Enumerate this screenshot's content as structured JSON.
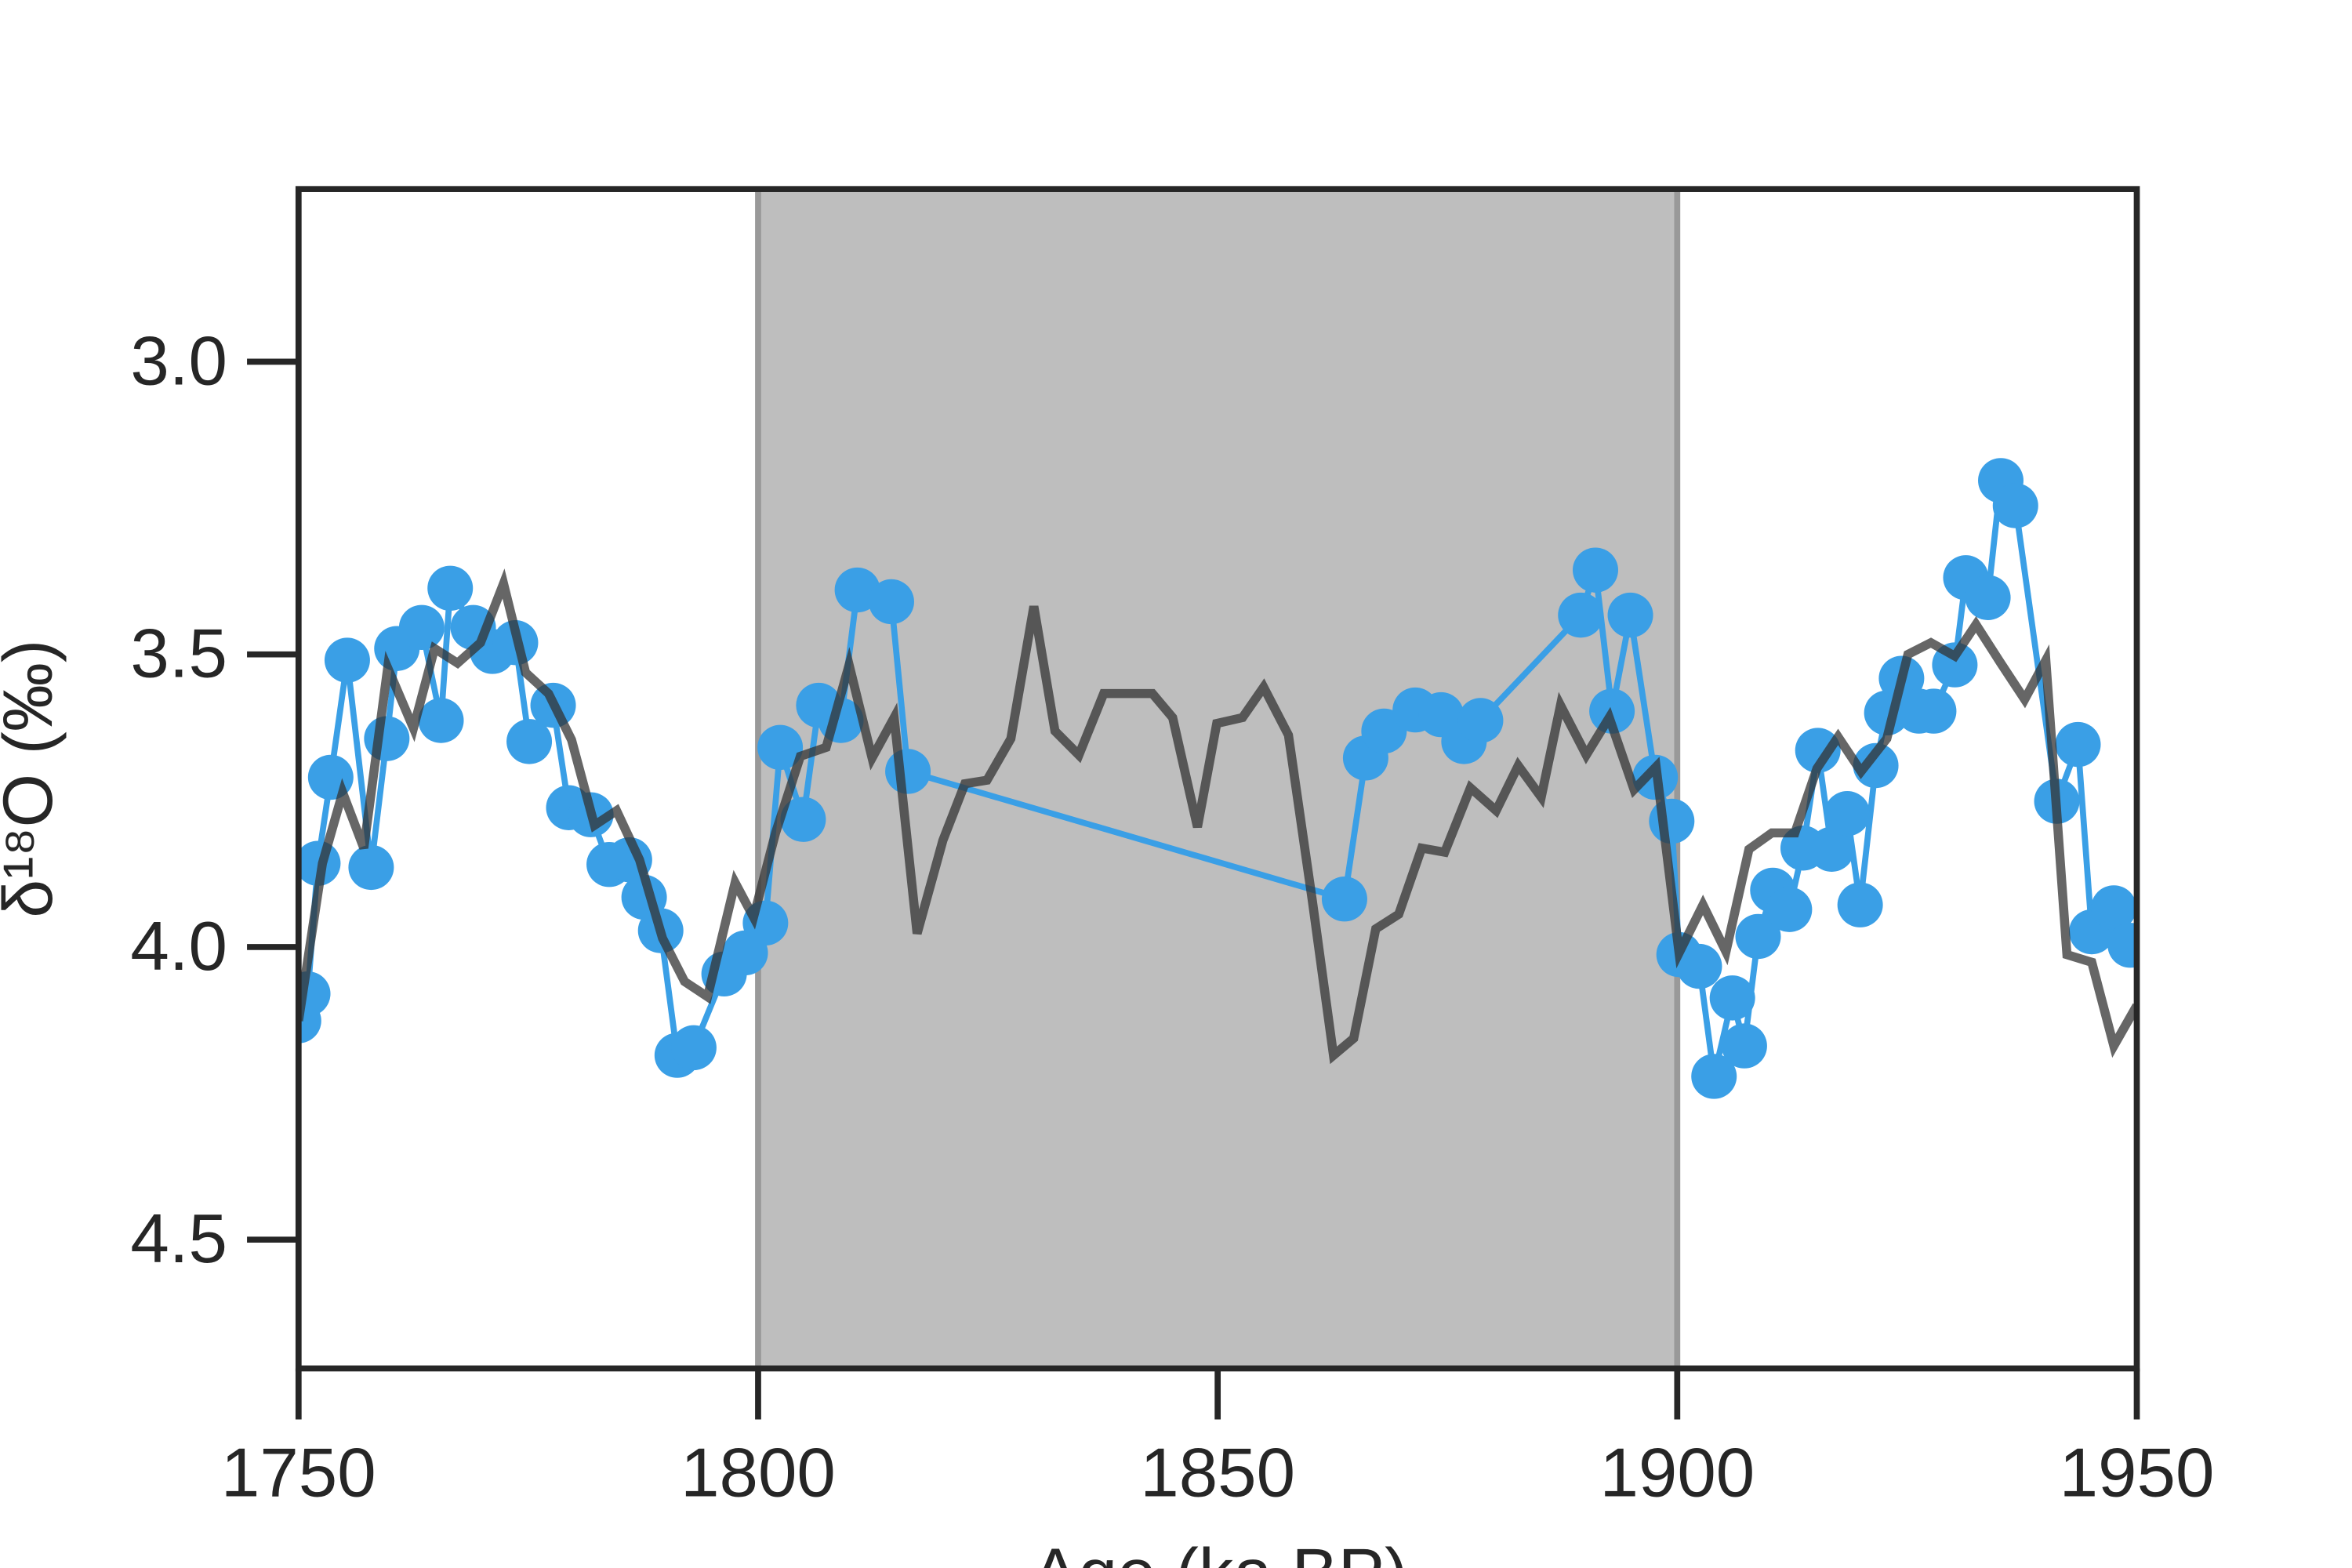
{
  "chart_data": {
    "type": "line",
    "x_label": "Age (ka BP)",
    "y_label": "δ¹⁸O (‰)",
    "xlim": [
      1750,
      1950
    ],
    "xticks": [
      1750,
      1800,
      1850,
      1900,
      1950
    ],
    "ylim": [
      4.72,
      2.705
    ],
    "yticks": [
      {
        "value": 3.0,
        "label": "3.0"
      },
      3.5,
      {
        "value": 4.0,
        "label": "4.0"
      },
      4.5
    ],
    "y_inverted": true,
    "shaded_span": [
      1800,
      1900
    ],
    "shade_color": "#bebebe",
    "series": [
      {
        "color": "#3a9fe6",
        "markers": true,
        "x": [
          1750.0,
          1751.0,
          1752.1,
          1753.5,
          1755.3,
          1757.9,
          1759.6,
          1760.7,
          1763.4,
          1765.5,
          1766.5,
          1769.0,
          1771.1,
          1773.6,
          1775.1,
          1777.7,
          1779.4,
          1781.8,
          1783.8,
          1786.0,
          1787.6,
          1789.4,
          1791.2,
          1793.0,
          1796.3,
          1798.6,
          1800.8,
          1802.4,
          1804.9,
          1806.6,
          1809.0,
          1810.8,
          1814.5,
          1816.3,
          1863.8,
          1866.1,
          1868.1,
          1871.5,
          1874.3,
          1876.8,
          1878.6,
          1889.5,
          1891.1,
          1892.9,
          1894.9,
          1897.6,
          1899.4,
          1900.2,
          1902.4,
          1904.0,
          1906.0,
          1907.3,
          1908.8,
          1910.4,
          1912.2,
          1913.7,
          1915.3,
          1916.8,
          1918.5,
          1919.9,
          1921.6,
          1922.8,
          1924.4,
          1926.3,
          1927.9,
          1930.2,
          1931.4,
          1933.8,
          1935.2,
          1936.8,
          1941.3,
          1943.6,
          1945.1,
          1947.5,
          1949.3
        ],
        "values": [
          4.126,
          4.08,
          3.857,
          3.71,
          3.51,
          3.864,
          3.644,
          3.49,
          3.454,
          3.613,
          3.387,
          3.454,
          3.495,
          3.48,
          3.649,
          3.587,
          3.762,
          3.774,
          3.859,
          3.851,
          3.915,
          3.972,
          4.185,
          4.172,
          4.046,
          4.01,
          3.959,
          3.659,
          3.782,
          3.587,
          3.613,
          3.39,
          3.41,
          3.7,
          3.918,
          3.677,
          3.631,
          3.595,
          3.603,
          3.649,
          3.613,
          3.433,
          3.356,
          3.597,
          3.433,
          3.71,
          3.785,
          4.013,
          4.033,
          4.221,
          4.087,
          4.169,
          3.982,
          3.903,
          3.936,
          3.831,
          3.664,
          3.833,
          3.772,
          3.928,
          3.69,
          3.6,
          3.541,
          3.597,
          3.597,
          3.518,
          3.369,
          3.403,
          3.203,
          3.246,
          3.751,
          3.654,
          3.974,
          3.933,
          3.997
        ]
      },
      {
        "color": "#333333",
        "markers": false,
        "x": [
          1750,
          1752.6,
          1754.8,
          1757.1,
          1759.7,
          1762.5,
          1764.8,
          1767.3,
          1769.8,
          1772.3,
          1774.7,
          1777.2,
          1779.7,
          1782.2,
          1784.6,
          1787.1,
          1789.6,
          1792.0,
          1794.5,
          1797.5,
          1799.5,
          1801.9,
          1804.6,
          1807.4,
          1809.9,
          1812.4,
          1814.8,
          1817.3,
          1820.1,
          1822.5,
          1824.9,
          1827.5,
          1830.0,
          1832.3,
          1834.9,
          1837.6,
          1840.2,
          1842.9,
          1845.1,
          1847.8,
          1849.9,
          1852.7,
          1855.0,
          1857.7,
          1860.3,
          1862.6,
          1864.8,
          1867.2,
          1869.7,
          1872.2,
          1874.7,
          1877.5,
          1880.3,
          1882.7,
          1885.2,
          1887.3,
          1890.1,
          1892.6,
          1895.3,
          1897.7,
          1900.2,
          1902.8,
          1905.3,
          1907.8,
          1910.3,
          1912.8,
          1915.2,
          1917.5,
          1920.0,
          1922.8,
          1925.1,
          1927.6,
          1930.2,
          1932.5,
          1935.2,
          1937.8,
          1940.1,
          1942.4,
          1945.1,
          1947.5,
          1950.0
        ],
        "values": [
          4.126,
          3.857,
          3.736,
          3.831,
          3.523,
          3.626,
          3.49,
          3.515,
          3.48,
          3.379,
          3.531,
          3.567,
          3.646,
          3.792,
          3.767,
          3.851,
          3.985,
          4.059,
          4.085,
          3.89,
          3.949,
          3.805,
          3.674,
          3.659,
          3.518,
          3.677,
          3.608,
          3.977,
          3.818,
          3.721,
          3.715,
          3.644,
          3.418,
          3.631,
          3.672,
          3.567,
          3.567,
          3.567,
          3.608,
          3.795,
          3.618,
          3.608,
          3.556,
          3.638,
          3.921,
          4.185,
          4.156,
          3.969,
          3.944,
          3.831,
          3.838,
          3.728,
          3.767,
          3.69,
          3.744,
          3.587,
          3.672,
          3.608,
          3.731,
          3.692,
          4.01,
          3.928,
          4.008,
          3.833,
          3.805,
          3.805,
          3.695,
          3.641,
          3.7,
          3.644,
          3.5,
          3.48,
          3.503,
          3.449,
          3.515,
          3.577,
          3.51,
          4.013,
          4.026,
          4.169,
          4.1
        ]
      }
    ]
  }
}
